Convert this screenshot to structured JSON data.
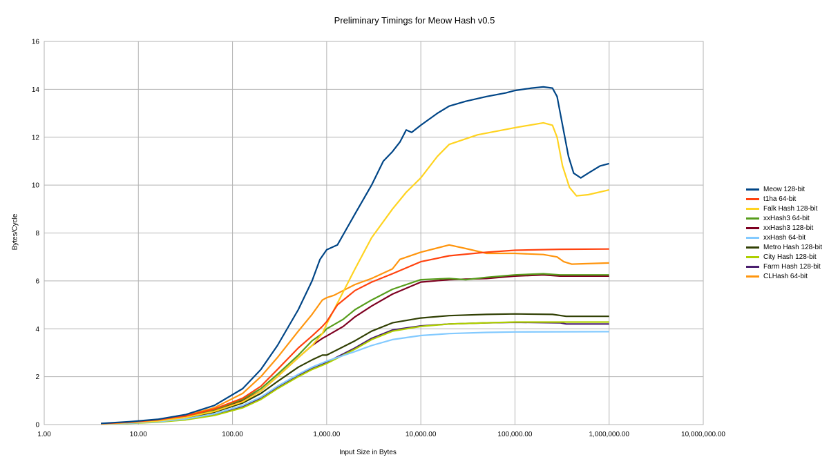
{
  "chart_data": {
    "type": "line",
    "title": "Preliminary Timings for Meow Hash v0.5",
    "xlabel": "Input Size in Bytes",
    "ylabel": "Bytes/Cycle",
    "xscale": "log10",
    "xlim": [
      1,
      10000000
    ],
    "ylim": [
      0,
      16
    ],
    "grid": true,
    "legend_position": "right",
    "x_ticks": [
      1,
      10,
      100,
      1000,
      10000,
      100000,
      1000000,
      10000000
    ],
    "x_tick_labels": [
      "1.00",
      "10.00",
      "100.00",
      "1,000.00",
      "10,000.00",
      "100,000.00",
      "1,000,000.00",
      "10,000,000.00"
    ],
    "y_ticks": [
      0,
      2,
      4,
      6,
      8,
      10,
      12,
      14,
      16
    ],
    "y_tick_labels": [
      "0",
      "2",
      "4",
      "6",
      "8",
      "10",
      "12",
      "14",
      "16"
    ],
    "series": [
      {
        "name": "Meow 128-bit",
        "color": "#004586",
        "points": [
          [
            4,
            0.05
          ],
          [
            8,
            0.12
          ],
          [
            16,
            0.22
          ],
          [
            32,
            0.42
          ],
          [
            64,
            0.8
          ],
          [
            128,
            1.5
          ],
          [
            200,
            2.3
          ],
          [
            300,
            3.3
          ],
          [
            500,
            4.8
          ],
          [
            700,
            6.0
          ],
          [
            850,
            6.9
          ],
          [
            1000,
            7.3
          ],
          [
            1300,
            7.5
          ],
          [
            2000,
            8.8
          ],
          [
            3000,
            10.0
          ],
          [
            4000,
            11.0
          ],
          [
            5000,
            11.4
          ],
          [
            6000,
            11.8
          ],
          [
            7000,
            12.3
          ],
          [
            8000,
            12.2
          ],
          [
            10000,
            12.5
          ],
          [
            15000,
            13.0
          ],
          [
            20000,
            13.3
          ],
          [
            30000,
            13.5
          ],
          [
            50000,
            13.7
          ],
          [
            80000,
            13.85
          ],
          [
            100000,
            13.95
          ],
          [
            150000,
            14.05
          ],
          [
            200000,
            14.1
          ],
          [
            250000,
            14.05
          ],
          [
            280000,
            13.7
          ],
          [
            320000,
            12.5
          ],
          [
            370000,
            11.2
          ],
          [
            420000,
            10.5
          ],
          [
            500000,
            10.3
          ],
          [
            600000,
            10.5
          ],
          [
            800000,
            10.8
          ],
          [
            1000000,
            10.9
          ]
        ]
      },
      {
        "name": "t1ha 64-bit",
        "color": "#ff420e",
        "points": [
          [
            4,
            0.04
          ],
          [
            8,
            0.1
          ],
          [
            16,
            0.2
          ],
          [
            32,
            0.36
          ],
          [
            64,
            0.65
          ],
          [
            128,
            1.1
          ],
          [
            200,
            1.6
          ],
          [
            300,
            2.3
          ],
          [
            500,
            3.2
          ],
          [
            700,
            3.7
          ],
          [
            900,
            4.1
          ],
          [
            1000,
            4.3
          ],
          [
            1300,
            5.0
          ],
          [
            2000,
            5.6
          ],
          [
            3000,
            5.95
          ],
          [
            5000,
            6.3
          ],
          [
            10000,
            6.8
          ],
          [
            20000,
            7.05
          ],
          [
            50000,
            7.2
          ],
          [
            100000,
            7.28
          ],
          [
            300000,
            7.32
          ],
          [
            1000000,
            7.33
          ]
        ]
      },
      {
        "name": "Falk Hash 128-bit",
        "color": "#ffd320",
        "points": [
          [
            4,
            0.03
          ],
          [
            8,
            0.08
          ],
          [
            16,
            0.15
          ],
          [
            32,
            0.3
          ],
          [
            64,
            0.55
          ],
          [
            128,
            0.95
          ],
          [
            200,
            1.4
          ],
          [
            300,
            2.0
          ],
          [
            500,
            2.8
          ],
          [
            700,
            3.3
          ],
          [
            900,
            3.8
          ],
          [
            1000,
            4.2
          ],
          [
            2000,
            6.5
          ],
          [
            3000,
            7.8
          ],
          [
            5000,
            9.0
          ],
          [
            7000,
            9.7
          ],
          [
            10000,
            10.3
          ],
          [
            15000,
            11.2
          ],
          [
            20000,
            11.7
          ],
          [
            40000,
            12.1
          ],
          [
            100000,
            12.4
          ],
          [
            200000,
            12.6
          ],
          [
            250000,
            12.5
          ],
          [
            280000,
            12.0
          ],
          [
            320000,
            10.8
          ],
          [
            380000,
            9.9
          ],
          [
            450000,
            9.55
          ],
          [
            600000,
            9.6
          ],
          [
            1000000,
            9.8
          ]
        ]
      },
      {
        "name": "xxHash3 64-bit",
        "color": "#579d1c",
        "points": [
          [
            4,
            0.04
          ],
          [
            8,
            0.1
          ],
          [
            16,
            0.2
          ],
          [
            32,
            0.35
          ],
          [
            64,
            0.62
          ],
          [
            128,
            1.05
          ],
          [
            200,
            1.5
          ],
          [
            300,
            2.1
          ],
          [
            500,
            2.9
          ],
          [
            700,
            3.5
          ],
          [
            900,
            3.8
          ],
          [
            1000,
            4.0
          ],
          [
            1500,
            4.4
          ],
          [
            2000,
            4.8
          ],
          [
            3000,
            5.2
          ],
          [
            5000,
            5.65
          ],
          [
            10000,
            6.05
          ],
          [
            20000,
            6.1
          ],
          [
            30000,
            6.05
          ],
          [
            50000,
            6.15
          ],
          [
            100000,
            6.25
          ],
          [
            200000,
            6.3
          ],
          [
            300000,
            6.25
          ],
          [
            1000000,
            6.25
          ]
        ]
      },
      {
        "name": "xxHash3 128-bit",
        "color": "#7e0021",
        "points": [
          [
            4,
            0.04
          ],
          [
            8,
            0.09
          ],
          [
            16,
            0.18
          ],
          [
            32,
            0.32
          ],
          [
            64,
            0.58
          ],
          [
            128,
            1.0
          ],
          [
            200,
            1.4
          ],
          [
            300,
            2.0
          ],
          [
            500,
            2.8
          ],
          [
            700,
            3.3
          ],
          [
            900,
            3.6
          ],
          [
            1000,
            3.7
          ],
          [
            1500,
            4.1
          ],
          [
            2000,
            4.5
          ],
          [
            3000,
            4.95
          ],
          [
            5000,
            5.45
          ],
          [
            10000,
            5.95
          ],
          [
            20000,
            6.05
          ],
          [
            50000,
            6.1
          ],
          [
            100000,
            6.2
          ],
          [
            200000,
            6.25
          ],
          [
            300000,
            6.2
          ],
          [
            1000000,
            6.2
          ]
        ]
      },
      {
        "name": "xxHash 64-bit",
        "color": "#83caff",
        "points": [
          [
            4,
            0.02
          ],
          [
            8,
            0.06
          ],
          [
            16,
            0.12
          ],
          [
            32,
            0.24
          ],
          [
            64,
            0.45
          ],
          [
            128,
            0.8
          ],
          [
            200,
            1.15
          ],
          [
            300,
            1.6
          ],
          [
            500,
            2.1
          ],
          [
            700,
            2.4
          ],
          [
            1000,
            2.65
          ],
          [
            2000,
            3.05
          ],
          [
            3000,
            3.3
          ],
          [
            5000,
            3.55
          ],
          [
            10000,
            3.72
          ],
          [
            20000,
            3.8
          ],
          [
            50000,
            3.85
          ],
          [
            100000,
            3.87
          ],
          [
            1000000,
            3.88
          ]
        ]
      },
      {
        "name": "Metro Hash 128-bit",
        "color": "#314004",
        "points": [
          [
            4,
            0.03
          ],
          [
            8,
            0.08
          ],
          [
            16,
            0.15
          ],
          [
            32,
            0.28
          ],
          [
            64,
            0.52
          ],
          [
            128,
            0.9
          ],
          [
            200,
            1.3
          ],
          [
            300,
            1.8
          ],
          [
            500,
            2.4
          ],
          [
            700,
            2.7
          ],
          [
            900,
            2.9
          ],
          [
            1000,
            2.9
          ],
          [
            2000,
            3.5
          ],
          [
            3000,
            3.9
          ],
          [
            5000,
            4.25
          ],
          [
            10000,
            4.45
          ],
          [
            20000,
            4.55
          ],
          [
            50000,
            4.6
          ],
          [
            100000,
            4.62
          ],
          [
            250000,
            4.6
          ],
          [
            350000,
            4.52
          ],
          [
            1000000,
            4.52
          ]
        ]
      },
      {
        "name": "City Hash 128-bit",
        "color": "#aecf00",
        "points": [
          [
            4,
            0.02
          ],
          [
            8,
            0.05
          ],
          [
            16,
            0.1
          ],
          [
            32,
            0.2
          ],
          [
            64,
            0.38
          ],
          [
            128,
            0.7
          ],
          [
            200,
            1.05
          ],
          [
            300,
            1.5
          ],
          [
            500,
            2.0
          ],
          [
            700,
            2.3
          ],
          [
            1000,
            2.55
          ],
          [
            2000,
            3.15
          ],
          [
            3000,
            3.55
          ],
          [
            5000,
            3.9
          ],
          [
            10000,
            4.1
          ],
          [
            20000,
            4.2
          ],
          [
            50000,
            4.25
          ],
          [
            100000,
            4.28
          ],
          [
            300000,
            4.28
          ],
          [
            1000000,
            4.28
          ]
        ]
      },
      {
        "name": "Farm Hash 128-bit",
        "color": "#4b1f6f",
        "points": [
          [
            4,
            0.02
          ],
          [
            8,
            0.06
          ],
          [
            16,
            0.11
          ],
          [
            32,
            0.22
          ],
          [
            64,
            0.42
          ],
          [
            128,
            0.75
          ],
          [
            200,
            1.1
          ],
          [
            300,
            1.55
          ],
          [
            500,
            2.05
          ],
          [
            700,
            2.35
          ],
          [
            1000,
            2.6
          ],
          [
            2000,
            3.2
          ],
          [
            3000,
            3.6
          ],
          [
            5000,
            3.95
          ],
          [
            10000,
            4.12
          ],
          [
            20000,
            4.2
          ],
          [
            50000,
            4.25
          ],
          [
            100000,
            4.27
          ],
          [
            300000,
            4.25
          ],
          [
            350000,
            4.2
          ],
          [
            1000000,
            4.2
          ]
        ]
      },
      {
        "name": "CLHash 64-bit",
        "color": "#ff950e",
        "points": [
          [
            4,
            0.04
          ],
          [
            8,
            0.1
          ],
          [
            16,
            0.2
          ],
          [
            32,
            0.38
          ],
          [
            64,
            0.7
          ],
          [
            128,
            1.3
          ],
          [
            200,
            2.0
          ],
          [
            300,
            2.8
          ],
          [
            500,
            3.9
          ],
          [
            700,
            4.6
          ],
          [
            900,
            5.2
          ],
          [
            1000,
            5.3
          ],
          [
            1200,
            5.4
          ],
          [
            1500,
            5.6
          ],
          [
            2000,
            5.85
          ],
          [
            3000,
            6.1
          ],
          [
            5000,
            6.5
          ],
          [
            6000,
            6.9
          ],
          [
            10000,
            7.2
          ],
          [
            20000,
            7.5
          ],
          [
            30000,
            7.35
          ],
          [
            50000,
            7.15
          ],
          [
            100000,
            7.15
          ],
          [
            200000,
            7.1
          ],
          [
            280000,
            7.0
          ],
          [
            330000,
            6.8
          ],
          [
            400000,
            6.7
          ],
          [
            1000000,
            6.75
          ]
        ]
      }
    ]
  }
}
